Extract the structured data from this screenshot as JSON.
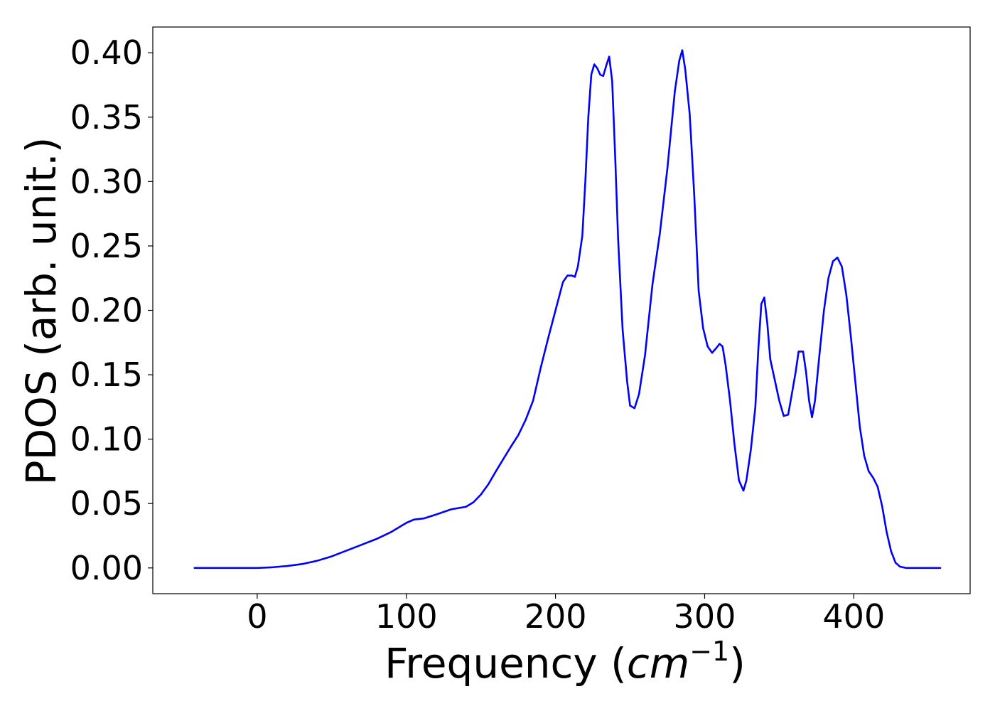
{
  "chart_data": {
    "type": "line",
    "title": "",
    "xlabel": "Frequency (cm⁻¹)",
    "xlabel_parts": {
      "prefix": "Frequency (",
      "unit": "cm",
      "exponent": "−1",
      "suffix": ")"
    },
    "ylabel": "PDOS (arb. unit.)",
    "xlim": [
      -70,
      478
    ],
    "ylim": [
      -0.02,
      0.42
    ],
    "xticks": [
      0,
      100,
      200,
      300,
      400
    ],
    "xtick_labels": [
      "0",
      "100",
      "200",
      "300",
      "400"
    ],
    "yticks": [
      0.0,
      0.05,
      0.1,
      0.15,
      0.2,
      0.25,
      0.3,
      0.35,
      0.4
    ],
    "ytick_labels": [
      "0.00",
      "0.05",
      "0.10",
      "0.15",
      "0.20",
      "0.25",
      "0.30",
      "0.35",
      "0.40"
    ],
    "grid": false,
    "line_color": "#0000ff",
    "series": [
      {
        "points": [
          [
            -42,
            0.0
          ],
          [
            -20,
            0.0
          ],
          [
            0,
            0.0
          ],
          [
            10,
            0.0005
          ],
          [
            20,
            0.0015
          ],
          [
            30,
            0.003
          ],
          [
            40,
            0.0055
          ],
          [
            50,
            0.009
          ],
          [
            60,
            0.0135
          ],
          [
            70,
            0.018
          ],
          [
            80,
            0.0225
          ],
          [
            90,
            0.028
          ],
          [
            100,
            0.035
          ],
          [
            105,
            0.0375
          ],
          [
            112,
            0.0385
          ],
          [
            120,
            0.0415
          ],
          [
            130,
            0.0455
          ],
          [
            140,
            0.0475
          ],
          [
            145,
            0.051
          ],
          [
            150,
            0.057
          ],
          [
            155,
            0.065
          ],
          [
            160,
            0.075
          ],
          [
            165,
            0.0845
          ],
          [
            170,
            0.094
          ],
          [
            175,
            0.103
          ],
          [
            180,
            0.115
          ],
          [
            185,
            0.13
          ],
          [
            190,
            0.155
          ],
          [
            195,
            0.178
          ],
          [
            200,
            0.2
          ],
          [
            205,
            0.222
          ],
          [
            208,
            0.227
          ],
          [
            211,
            0.227
          ],
          [
            213,
            0.226
          ],
          [
            215,
            0.234
          ],
          [
            218,
            0.258
          ],
          [
            220,
            0.3
          ],
          [
            222,
            0.35
          ],
          [
            224,
            0.383
          ],
          [
            226,
            0.391
          ],
          [
            228,
            0.388
          ],
          [
            230,
            0.383
          ],
          [
            232,
            0.382
          ],
          [
            234,
            0.39
          ],
          [
            236,
            0.397
          ],
          [
            238,
            0.378
          ],
          [
            240,
            0.32
          ],
          [
            242,
            0.255
          ],
          [
            245,
            0.185
          ],
          [
            248,
            0.145
          ],
          [
            250,
            0.126
          ],
          [
            253,
            0.124
          ],
          [
            256,
            0.135
          ],
          [
            260,
            0.165
          ],
          [
            265,
            0.22
          ],
          [
            270,
            0.26
          ],
          [
            275,
            0.31
          ],
          [
            280,
            0.37
          ],
          [
            283,
            0.394
          ],
          [
            285,
            0.402
          ],
          [
            287,
            0.387
          ],
          [
            290,
            0.352
          ],
          [
            293,
            0.29
          ],
          [
            296,
            0.215
          ],
          [
            299,
            0.186
          ],
          [
            302,
            0.172
          ],
          [
            305,
            0.167
          ],
          [
            308,
            0.171
          ],
          [
            310,
            0.174
          ],
          [
            312,
            0.172
          ],
          [
            314,
            0.158
          ],
          [
            317,
            0.13
          ],
          [
            320,
            0.096
          ],
          [
            323,
            0.068
          ],
          [
            326,
            0.06
          ],
          [
            328,
            0.068
          ],
          [
            331,
            0.092
          ],
          [
            334,
            0.125
          ],
          [
            336,
            0.17
          ],
          [
            338,
            0.205
          ],
          [
            340,
            0.21
          ],
          [
            342,
            0.19
          ],
          [
            344,
            0.162
          ],
          [
            347,
            0.146
          ],
          [
            350,
            0.13
          ],
          [
            353,
            0.118
          ],
          [
            356,
            0.119
          ],
          [
            358,
            0.132
          ],
          [
            361,
            0.152
          ],
          [
            363,
            0.168
          ],
          [
            366,
            0.168
          ],
          [
            368,
            0.152
          ],
          [
            370,
            0.13
          ],
          [
            372,
            0.117
          ],
          [
            374,
            0.13
          ],
          [
            377,
            0.166
          ],
          [
            380,
            0.2
          ],
          [
            383,
            0.225
          ],
          [
            386,
            0.238
          ],
          [
            389,
            0.241
          ],
          [
            392,
            0.234
          ],
          [
            395,
            0.212
          ],
          [
            398,
            0.18
          ],
          [
            401,
            0.145
          ],
          [
            404,
            0.11
          ],
          [
            407,
            0.087
          ],
          [
            410,
            0.075
          ],
          [
            413,
            0.07
          ],
          [
            416,
            0.063
          ],
          [
            419,
            0.048
          ],
          [
            422,
            0.028
          ],
          [
            425,
            0.013
          ],
          [
            428,
            0.004
          ],
          [
            431,
            0.001
          ],
          [
            435,
            0.0
          ],
          [
            445,
            0.0
          ],
          [
            458,
            0.0
          ]
        ]
      }
    ]
  }
}
